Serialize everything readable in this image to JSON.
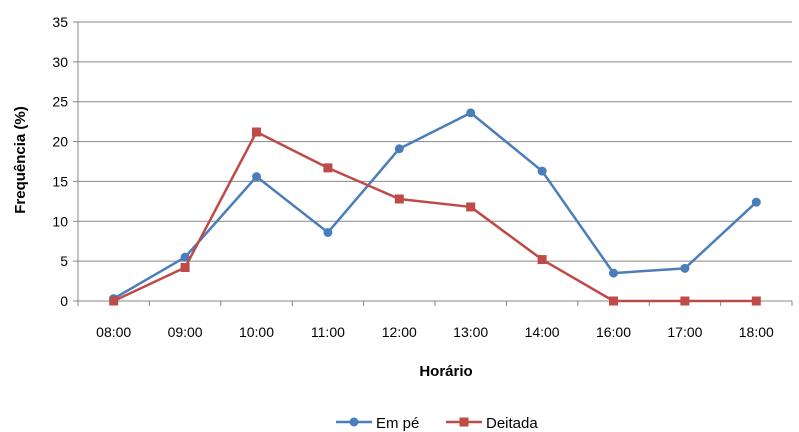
{
  "chart_data": {
    "type": "line",
    "title": "",
    "xlabel": "Horário",
    "ylabel": "Frequência (%)",
    "ylim": [
      0,
      35
    ],
    "yticks": [
      "0",
      "5",
      "10",
      "15",
      "20",
      "25",
      "30",
      "35"
    ],
    "grid": true,
    "legend_position": "bottom",
    "categories": [
      "08:00",
      "09:00",
      "10:00",
      "11:00",
      "12:00",
      "13:00",
      "14:00",
      "16:00",
      "17:00",
      "18:00"
    ],
    "series": [
      {
        "name": "Em pé",
        "color": "#4A7EBB",
        "marker": "circle",
        "values": [
          0.3,
          5.5,
          15.6,
          8.6,
          19.1,
          23.6,
          16.3,
          3.5,
          4.1,
          12.4
        ]
      },
      {
        "name": "Deitada",
        "color": "#BE4B48",
        "marker": "square",
        "values": [
          0,
          4.2,
          21.2,
          16.7,
          12.8,
          11.8,
          5.2,
          0,
          0,
          0
        ]
      }
    ]
  }
}
